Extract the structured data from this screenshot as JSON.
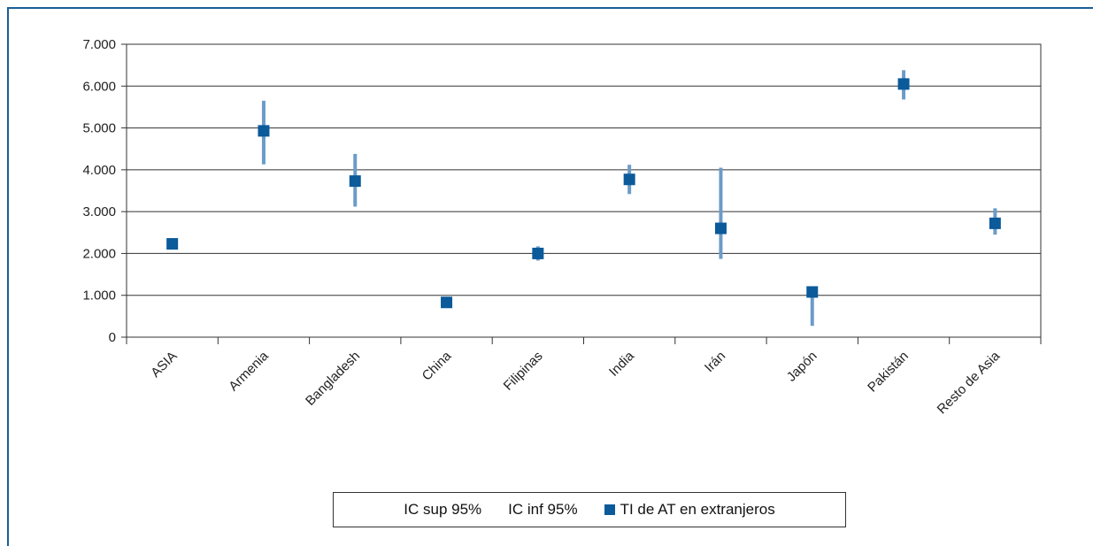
{
  "chart_data": {
    "type": "scatter",
    "categories": [
      "ASIA",
      "Armenia",
      "Bangladesh",
      "China",
      "Filipinas",
      "India",
      "Irán",
      "Japón",
      "Pakistán",
      "Resto de Asia"
    ],
    "series": [
      {
        "name": "IC sup 95%",
        "values": [
          2.25,
          5.65,
          4.38,
          0.85,
          2.17,
          4.12,
          4.05,
          1.1,
          6.38,
          3.08
        ]
      },
      {
        "name": "IC inf 95%",
        "values": [
          2.22,
          4.13,
          3.12,
          0.82,
          1.83,
          3.42,
          1.87,
          0.27,
          5.68,
          2.45
        ]
      },
      {
        "name": "TI de AT en extranjeros",
        "values": [
          2.23,
          4.93,
          3.73,
          0.83,
          2.0,
          3.77,
          2.6,
          1.08,
          6.05,
          2.72
        ]
      }
    ],
    "yticks": [
      "0",
      "1.000",
      "2.000",
      "3.000",
      "4.000",
      "5.000",
      "6.000",
      "7.000"
    ],
    "ylim": [
      0,
      7
    ],
    "grid": true,
    "legend": "bottom",
    "colors": {
      "marker": "#0b5a9a",
      "errorbar": "#6b9cc9",
      "grid": "#333333"
    }
  },
  "legend": {
    "upper": "IC sup 95%",
    "lower": "IC inf 95%",
    "main": "TI de AT en extranjeros"
  }
}
